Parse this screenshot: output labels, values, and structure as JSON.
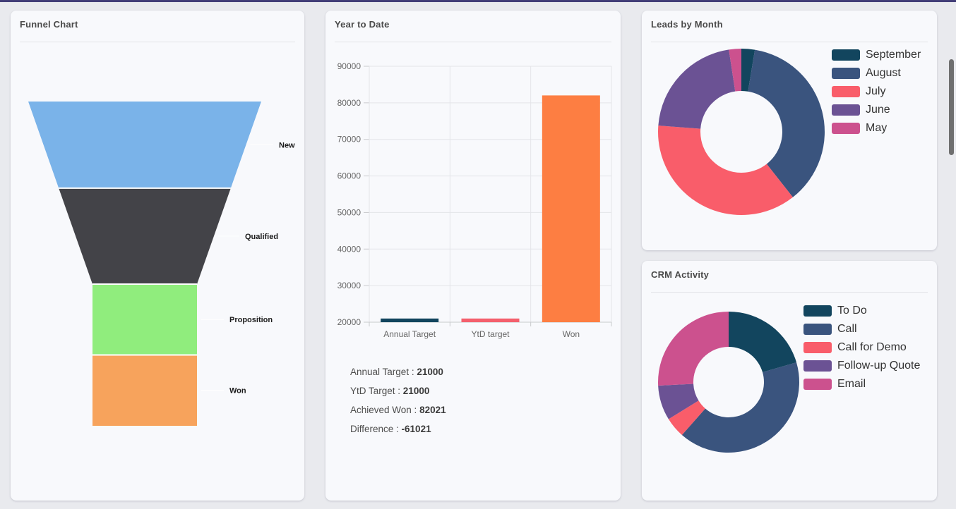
{
  "page": {
    "top_accent_color": "#423e78",
    "background_color": "#e9eaee",
    "panel_background_color": "#f8f9fc"
  },
  "panels": {
    "funnel": {
      "title": "Funnel Chart"
    },
    "ytd": {
      "title": "Year to Date",
      "summary": [
        {
          "label": "Annual Target",
          "value": "21000"
        },
        {
          "label": "YtD Target",
          "value": "21000"
        },
        {
          "label": "Achieved Won",
          "value": "82021"
        },
        {
          "label": "Difference",
          "value": "-61021"
        }
      ]
    },
    "leads": {
      "title": "Leads by Month"
    },
    "crm": {
      "title": "CRM Activity"
    }
  },
  "chart_data": [
    {
      "id": "funnel",
      "type": "funnel",
      "title": "Funnel Chart",
      "labels": [
        "New",
        "Qualified",
        "Proposition",
        "Won"
      ],
      "height_pct": [
        26.7,
        29.6,
        21.85,
        21.85
      ],
      "colors": [
        "#7ab3e9",
        "#434348",
        "#90ed7d",
        "#f7a35c"
      ],
      "label_color": "#1b1b1b",
      "connector_color": "#ffffff"
    },
    {
      "id": "ytd",
      "type": "bar",
      "title": "Year to Date",
      "categories": [
        "Annual Target",
        "YtD target",
        "Won"
      ],
      "values": [
        21000,
        21000,
        82021
      ],
      "colors": [
        "#12455e",
        "#f4606d",
        "#fd7e42"
      ],
      "ylim": [
        20000,
        90000
      ],
      "ytick_step": 10000,
      "grid": true,
      "axis_label_color": "#666666",
      "gridline_color": "#e4e5e9",
      "axis_line_color": "#c9cacd"
    },
    {
      "id": "leads",
      "type": "donut",
      "title": "Leads by Month",
      "labels": [
        "September",
        "August",
        "July",
        "June",
        "May"
      ],
      "values_pct": [
        2.6,
        36.8,
        36.8,
        21.4,
        2.4
      ],
      "colors": [
        "#12455e",
        "#3a547e",
        "#f95d6a",
        "#6b5294",
        "#cc518e"
      ],
      "legend_position": "right"
    },
    {
      "id": "crm",
      "type": "donut",
      "title": "CRM Activity",
      "labels": [
        "To Do",
        "Call",
        "Call for Demo",
        "Follow-up Quote",
        "Email"
      ],
      "values_pct": [
        20.5,
        41,
        4.7,
        8,
        25.8
      ],
      "colors": [
        "#12455e",
        "#3a547e",
        "#f95d6a",
        "#6b5294",
        "#cc518e"
      ],
      "legend_position": "right"
    }
  ]
}
